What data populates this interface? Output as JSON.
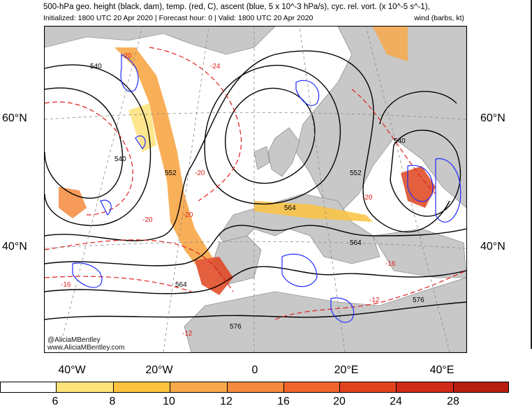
{
  "header": {
    "title_line": "500-hPa geo. height (black, dam), temp. (red, C), ascent (blue, 5 x 10^-3 hPa/s), cyc. rel. vort. (x 10^-5 s^-1),",
    "info_line": "Initialized: 1800 UTC 20 Apr 2020 | Forecast hour: 0 | Valid: 1800 UTC 20 Apr 2020",
    "wind_note": "wind (barbs, kt)"
  },
  "map": {
    "lat_labels": {
      "north60": "60°N",
      "north40": "40°N"
    },
    "lon_labels": [
      "40°W",
      "20°W",
      "0",
      "20°E",
      "40°E"
    ],
    "height_labels": [
      "540",
      "540",
      "552",
      "564",
      "564",
      "564",
      "576",
      "540",
      "540",
      "552",
      "576"
    ],
    "temp_labels": [
      "-20",
      "-24",
      "-20",
      "-20",
      "-20",
      "-16",
      "-12",
      "-12",
      "-20",
      "-16"
    ],
    "colors": {
      "land": "#c8c8c8",
      "ocean": "#ffffff",
      "height": "#000000",
      "temp": "#e0201c",
      "ascent": "#1f2bff"
    }
  },
  "credits": {
    "handle": "@AliciaMBentley",
    "site": "www.AliciaMBentley.com"
  },
  "colorbar": {
    "ticks": [
      "6",
      "8",
      "10",
      "12",
      "16",
      "20",
      "24",
      "28"
    ],
    "colors": [
      "#ffffff",
      "#fde27a",
      "#fbc33f",
      "#f8a94c",
      "#f48a3c",
      "#f0652d",
      "#e0441d",
      "#d02a18",
      "#b81e10"
    ]
  }
}
